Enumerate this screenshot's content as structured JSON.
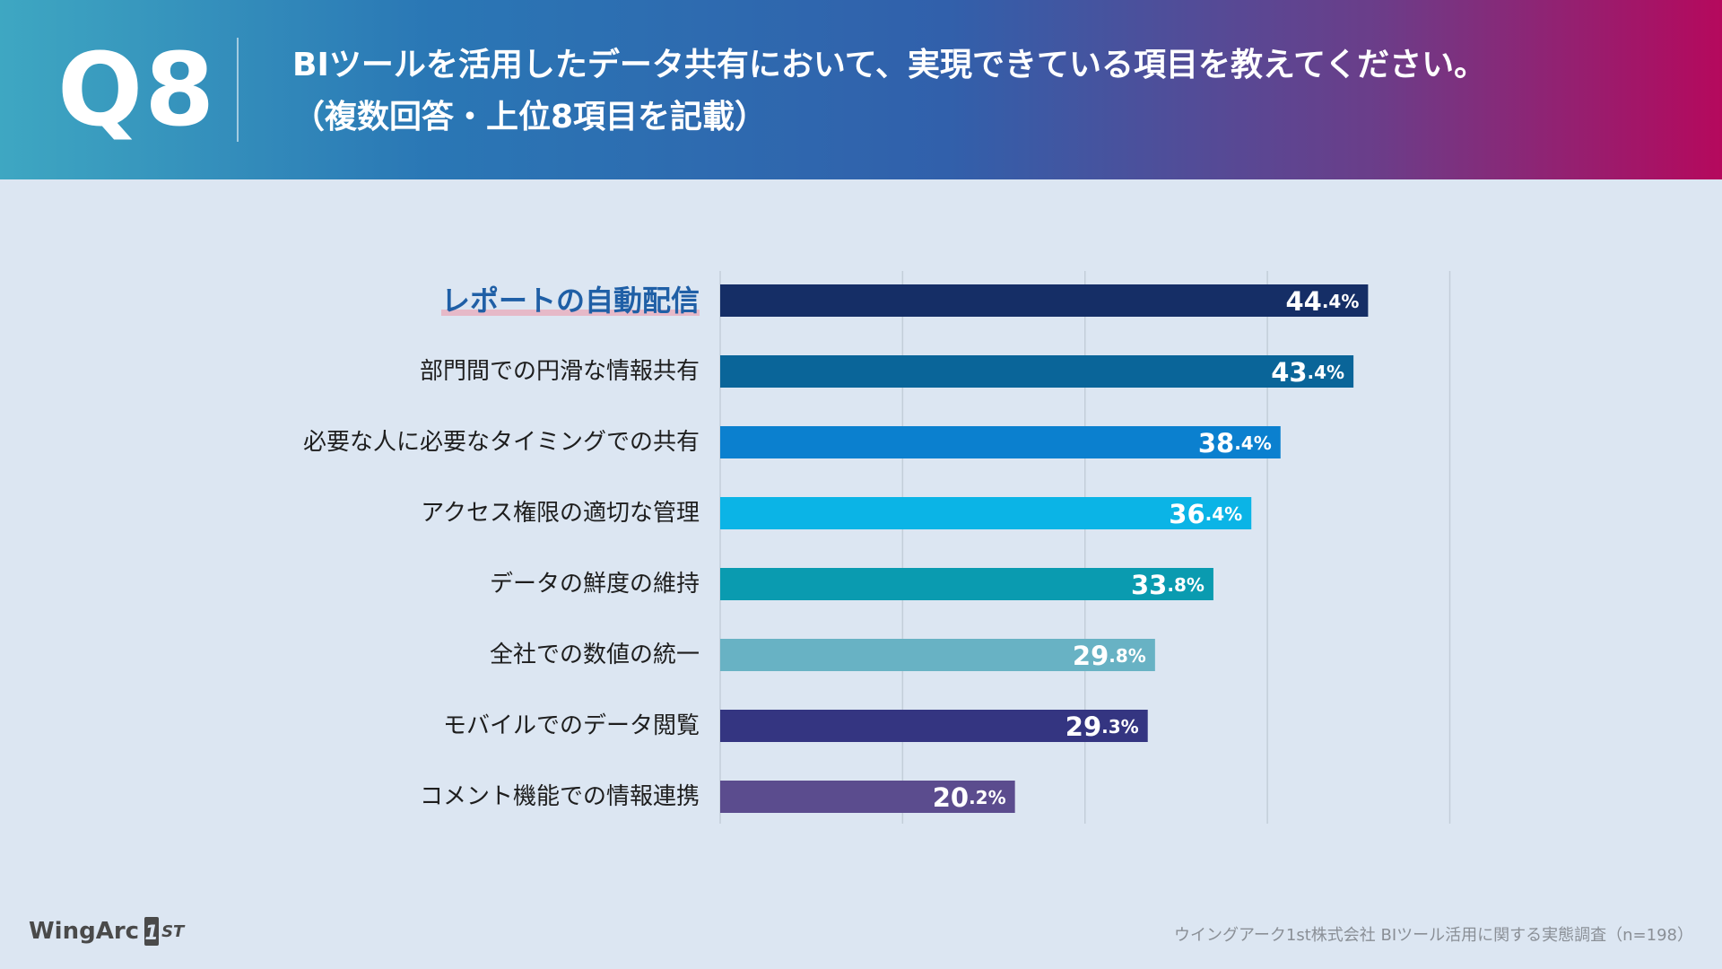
{
  "header": {
    "qnum": "Q8",
    "title_line1": "BIツールを活用したデータ共有において、実現できている項目を教えてください。",
    "title_line2": "（複数回答・上位8項目を記載）"
  },
  "chart_data": {
    "type": "bar",
    "orientation": "horizontal",
    "title": "BIツールを活用したデータ共有において、実現できている項目を教えてください。（複数回答・上位8項目を記載）",
    "categories": [
      "レポートの自動配信",
      "部門間での円滑な情報共有",
      "必要な人に必要なタイミングでの共有",
      "アクセス権限の適切な管理",
      "データの鮮度の維持",
      "全社での数値の統一",
      "モバイルでのデータ閲覧",
      "コメント機能での情報連携"
    ],
    "values": [
      44.4,
      43.4,
      38.4,
      36.4,
      33.8,
      29.8,
      29.3,
      20.2
    ],
    "value_labels": [
      {
        "int": "44",
        "dec": ".4%"
      },
      {
        "int": "43",
        "dec": ".4%"
      },
      {
        "int": "38",
        "dec": ".4%"
      },
      {
        "int": "36",
        "dec": ".4%"
      },
      {
        "int": "33",
        "dec": ".8%"
      },
      {
        "int": "29",
        "dec": ".8%"
      },
      {
        "int": "29",
        "dec": ".3%"
      },
      {
        "int": "20",
        "dec": ".2%"
      }
    ],
    "unit": "%",
    "xlim": [
      0,
      50
    ],
    "gridlines_at": [
      0,
      12.5,
      25,
      37.5,
      50
    ],
    "highlight_index": 0,
    "colors": [
      "#152e66",
      "#0a6599",
      "#0b80cf",
      "#0bb4e6",
      "#0a9bb0",
      "#68b2c4",
      "#343581",
      "#5b4c8e"
    ],
    "highlight_label_color": "#1f5fa6",
    "highlight_underline_color": "#e6b9c8"
  },
  "footer": {
    "logo_text": "WingArc",
    "logo_mark": "1",
    "logo_suffix": "ST",
    "source": "ウイングアーク1st株式会社 BIツール活用に関する実態調査（n=198）"
  }
}
